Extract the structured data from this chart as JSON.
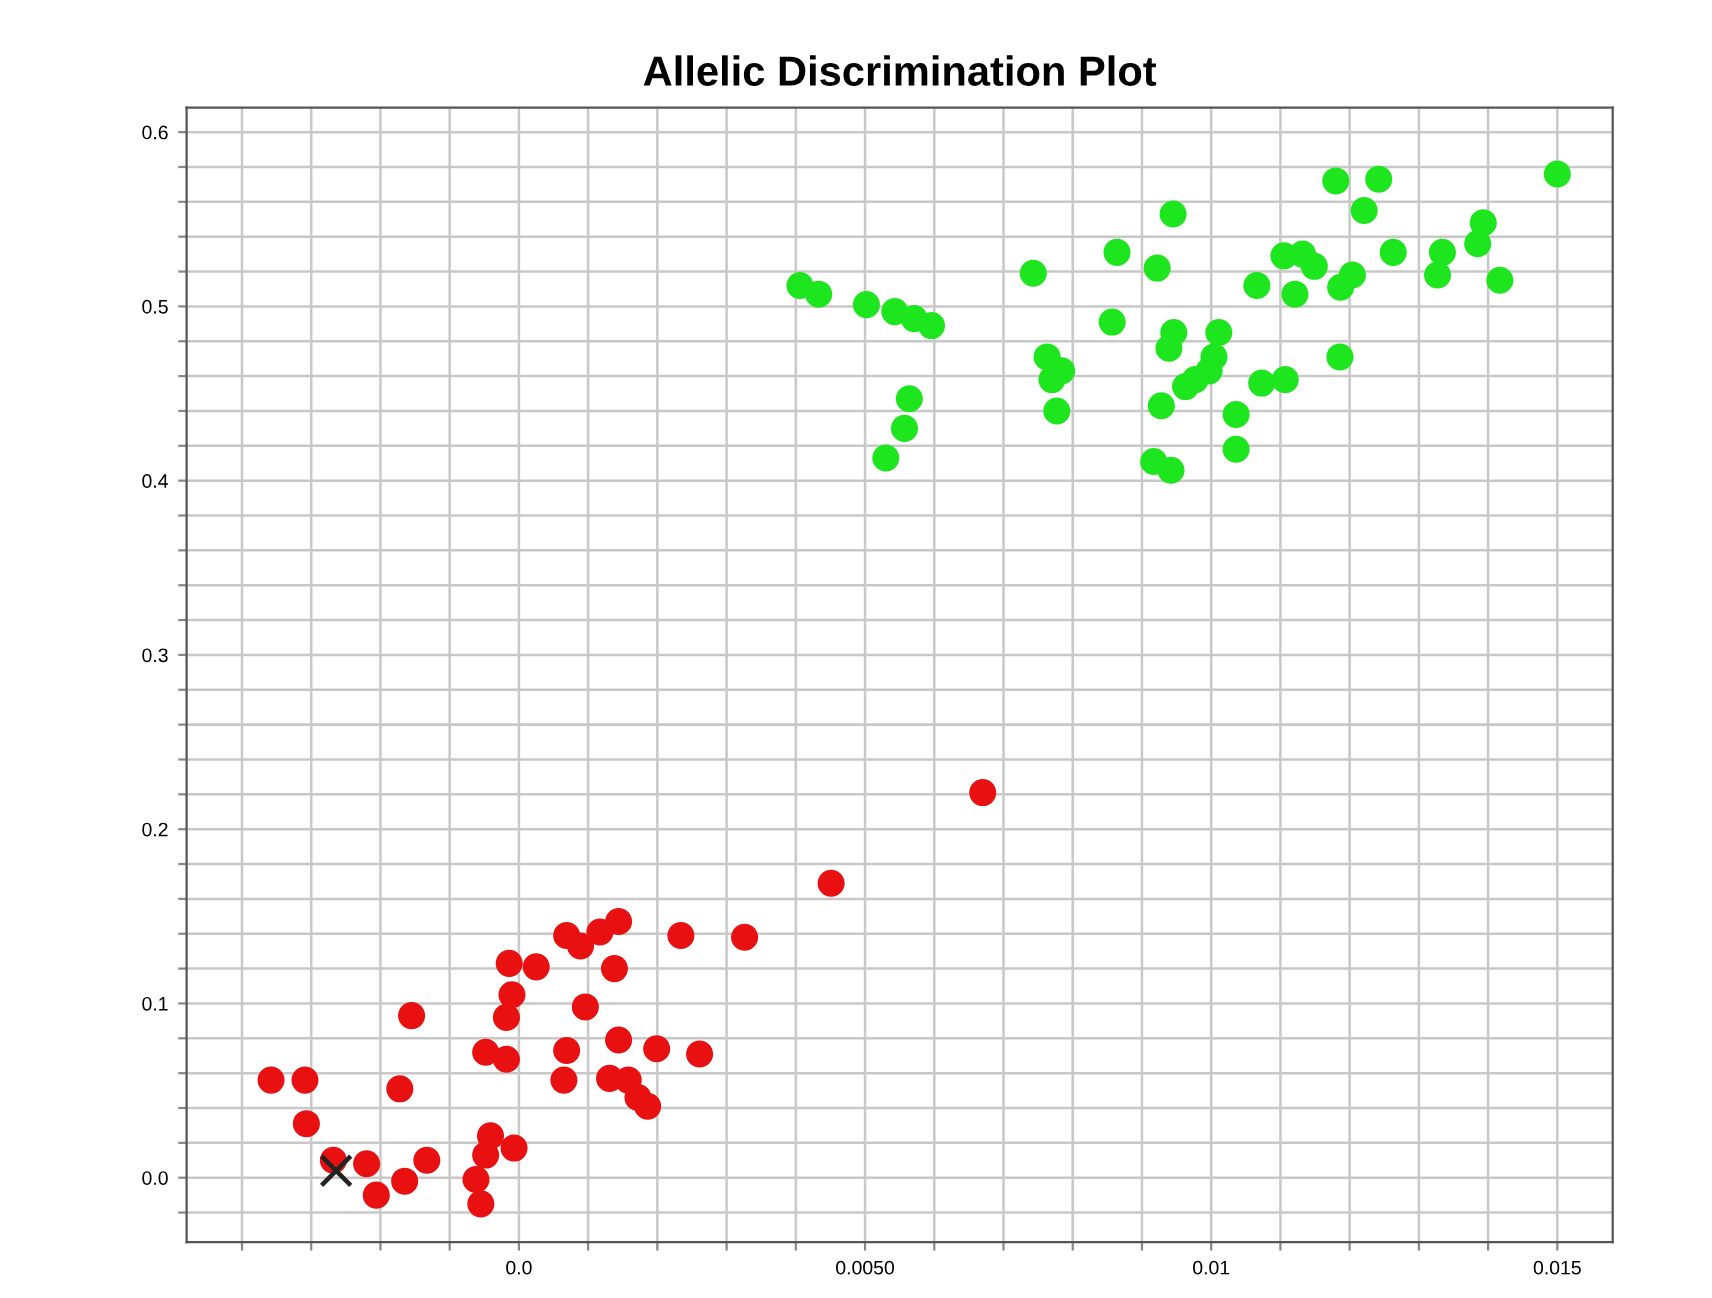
{
  "chart_data": {
    "type": "scatter",
    "title": "Allelic Discrimination Plot",
    "xlim": [
      -0.0048,
      0.0158
    ],
    "ylim": [
      -0.037,
      0.614
    ],
    "xticks": [
      {
        "value": -0.004,
        "label": null
      },
      {
        "value": -0.003,
        "label": null
      },
      {
        "value": -0.002,
        "label": null
      },
      {
        "value": -0.001,
        "label": null
      },
      {
        "value": 0.0,
        "label": "0.0"
      },
      {
        "value": 0.001,
        "label": null
      },
      {
        "value": 0.002,
        "label": null
      },
      {
        "value": 0.003,
        "label": null
      },
      {
        "value": 0.004,
        "label": null
      },
      {
        "value": 0.005,
        "label": "0.0050"
      },
      {
        "value": 0.006,
        "label": null
      },
      {
        "value": 0.007,
        "label": null
      },
      {
        "value": 0.008,
        "label": null
      },
      {
        "value": 0.009,
        "label": null
      },
      {
        "value": 0.01,
        "label": "0.01"
      },
      {
        "value": 0.011,
        "label": null
      },
      {
        "value": 0.012,
        "label": null
      },
      {
        "value": 0.013,
        "label": null
      },
      {
        "value": 0.014,
        "label": null
      },
      {
        "value": 0.015,
        "label": "0.015"
      }
    ],
    "yticks": [
      {
        "value": -0.02,
        "label": null
      },
      {
        "value": 0.0,
        "label": "0.0"
      },
      {
        "value": 0.02,
        "label": null
      },
      {
        "value": 0.04,
        "label": null
      },
      {
        "value": 0.06,
        "label": null
      },
      {
        "value": 0.08,
        "label": null
      },
      {
        "value": 0.1,
        "label": "0.1"
      },
      {
        "value": 0.12,
        "label": null
      },
      {
        "value": 0.14,
        "label": null
      },
      {
        "value": 0.16,
        "label": null
      },
      {
        "value": 0.18,
        "label": null
      },
      {
        "value": 0.2,
        "label": "0.2"
      },
      {
        "value": 0.22,
        "label": null
      },
      {
        "value": 0.24,
        "label": null
      },
      {
        "value": 0.26,
        "label": null
      },
      {
        "value": 0.28,
        "label": null
      },
      {
        "value": 0.3,
        "label": "0.3"
      },
      {
        "value": 0.32,
        "label": null
      },
      {
        "value": 0.34,
        "label": null
      },
      {
        "value": 0.36,
        "label": null
      },
      {
        "value": 0.38,
        "label": null
      },
      {
        "value": 0.4,
        "label": "0.4"
      },
      {
        "value": 0.42,
        "label": null
      },
      {
        "value": 0.44,
        "label": null
      },
      {
        "value": 0.46,
        "label": null
      },
      {
        "value": 0.48,
        "label": null
      },
      {
        "value": 0.5,
        "label": "0.5"
      },
      {
        "value": 0.52,
        "label": null
      },
      {
        "value": 0.54,
        "label": null
      },
      {
        "value": 0.56,
        "label": null
      },
      {
        "value": 0.58,
        "label": null
      },
      {
        "value": 0.6,
        "label": "0.6"
      }
    ],
    "grid": true,
    "marker": "circle",
    "series": [
      {
        "color": "#1ee61e",
        "x": [
          0.015,
          0.0118,
          0.01242,
          0.00945,
          0.01221,
          0.01393,
          0.01385,
          0.01334,
          0.01263,
          0.00864,
          0.01105,
          0.01132,
          0.01149,
          0.00922,
          0.00743,
          0.01327,
          0.01417,
          0.01204,
          0.01187,
          0.01066,
          0.01121,
          0.00406,
          0.00433,
          0.00502,
          0.00543,
          0.00571,
          0.00596,
          0.00857,
          0.00946,
          0.01011,
          0.00939,
          0.01004,
          0.01186,
          0.00763,
          0.00784,
          0.0077,
          0.00997,
          0.00977,
          0.00963,
          0.01073,
          0.01107,
          0.00928,
          0.01036,
          0.00777,
          0.00564,
          0.00557,
          0.0053,
          0.01036,
          0.00917,
          0.00942
        ],
        "values": [
          0.576,
          0.572,
          0.573,
          0.553,
          0.555,
          0.548,
          0.536,
          0.531,
          0.531,
          0.531,
          0.529,
          0.53,
          0.523,
          0.522,
          0.519,
          0.518,
          0.515,
          0.518,
          0.511,
          0.512,
          0.507,
          0.512,
          0.507,
          0.501,
          0.497,
          0.493,
          0.489,
          0.491,
          0.485,
          0.485,
          0.476,
          0.471,
          0.471,
          0.471,
          0.463,
          0.458,
          0.463,
          0.458,
          0.454,
          0.456,
          0.458,
          0.443,
          0.438,
          0.44,
          0.447,
          0.43,
          0.413,
          0.418,
          0.411,
          0.406
        ]
      },
      {
        "color": "#e81010",
        "x": [
          0.0067,
          0.00451,
          0.00234,
          0.00326,
          0.00069,
          0.00089,
          0.00117,
          0.00144,
          -0.00014,
          0.00025,
          0.00138,
          -0.0001,
          -0.00018,
          0.00096,
          -0.00155,
          -0.00048,
          -0.00018,
          0.00069,
          0.00144,
          0.00199,
          0.00261,
          -0.00358,
          -0.00309,
          -0.00172,
          0.00065,
          0.00131,
          0.00158,
          0.00172,
          0.00186,
          -0.00307,
          -0.00041,
          -7e-05,
          -0.00048,
          -0.00133,
          -0.00268,
          -0.0022,
          -0.00165,
          -0.00062,
          -0.00206,
          -0.00055
        ],
        "values": [
          0.221,
          0.169,
          0.139,
          0.138,
          0.139,
          0.133,
          0.141,
          0.147,
          0.123,
          0.121,
          0.12,
          0.105,
          0.092,
          0.098,
          0.093,
          0.072,
          0.068,
          0.073,
          0.079,
          0.074,
          0.071,
          0.056,
          0.056,
          0.051,
          0.056,
          0.057,
          0.056,
          0.046,
          0.041,
          0.031,
          0.024,
          0.017,
          0.013,
          0.01,
          0.01,
          0.008,
          -0.002,
          -0.001,
          -0.01,
          -0.015
        ]
      },
      {
        "color": "#222222",
        "marker": "cross",
        "x": [
          -0.00264
        ],
        "values": [
          0.004
        ]
      }
    ]
  }
}
